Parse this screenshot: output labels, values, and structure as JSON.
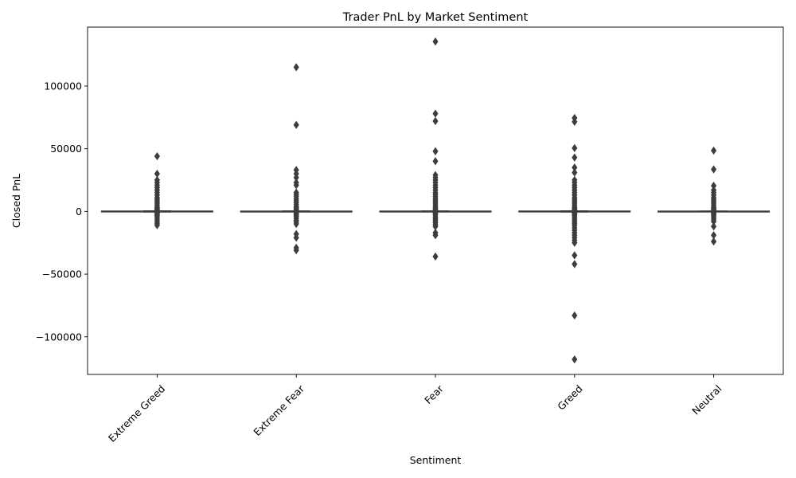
{
  "chart_data": {
    "type": "boxplot",
    "title": "Trader PnL by Market Sentiment",
    "xlabel": "Sentiment",
    "ylabel": "Closed PnL",
    "categories": [
      "Extreme Greed",
      "Extreme Fear",
      "Fear",
      "Greed",
      "Neutral"
    ],
    "yticks": [
      -100000,
      -50000,
      0,
      50000,
      100000
    ],
    "ytick_labels": [
      "−100000",
      "−50000",
      "0",
      "50000",
      "100000"
    ],
    "ylim": [
      -130000,
      147000
    ],
    "grid": false,
    "box_color": "#3d3d3d",
    "series": [
      {
        "name": "Extreme Greed",
        "median": 0,
        "q1": -50,
        "q3": 150,
        "whisker_low": -500,
        "whisker_high": 500,
        "outliers": [
          44000,
          30000,
          25000,
          23000,
          21000,
          19000,
          17000,
          15000,
          13000,
          11000,
          9500,
          8000,
          6500,
          5000,
          3500,
          2500,
          1500,
          1000,
          -1000,
          -1500,
          -2500,
          -3500,
          -5000,
          -6500,
          -8000,
          -9500,
          -11000
        ]
      },
      {
        "name": "Extreme Fear",
        "median": 0,
        "q1": -50,
        "q3": 100,
        "whisker_low": -400,
        "whisker_high": 400,
        "outliers": [
          115000,
          69000,
          33000,
          30000,
          27000,
          23000,
          21000,
          15000,
          13500,
          12000,
          10000,
          8500,
          7000,
          5500,
          4000,
          3000,
          2000,
          1000,
          -1000,
          -2000,
          -3000,
          -4000,
          -5500,
          -7000,
          -8500,
          -10000,
          -18000,
          -21000,
          -29000,
          -31000
        ]
      },
      {
        "name": "Fear",
        "median": 0,
        "q1": -50,
        "q3": 120,
        "whisker_low": -450,
        "whisker_high": 450,
        "outliers": [
          135500,
          78000,
          72000,
          48000,
          40000,
          29000,
          27000,
          25000,
          23000,
          21000,
          19000,
          17000,
          15000,
          13500,
          12000,
          10500,
          9000,
          7500,
          6000,
          4500,
          3000,
          2000,
          1000,
          -1000,
          -2000,
          -3000,
          -4500,
          -6000,
          -7500,
          -9000,
          -10500,
          -12000,
          -17000,
          -19000,
          -36000
        ]
      },
      {
        "name": "Greed",
        "median": 0,
        "q1": -60,
        "q3": 150,
        "whisker_low": -500,
        "whisker_high": 500,
        "outliers": [
          74500,
          71500,
          50500,
          43000,
          35000,
          31000,
          25000,
          23000,
          21000,
          19000,
          17000,
          15000,
          13000,
          11000,
          9500,
          8000,
          6500,
          5000,
          3500,
          2500,
          1500,
          1000,
          -1000,
          -1500,
          -2500,
          -3500,
          -5000,
          -6500,
          -8000,
          -9500,
          -11000,
          -13000,
          -15000,
          -17000,
          -19000,
          -21000,
          -23000,
          -25000,
          -35000,
          -42000,
          -83000,
          -118000
        ]
      },
      {
        "name": "Neutral",
        "median": 0,
        "q1": -40,
        "q3": 100,
        "whisker_low": -350,
        "whisker_high": 350,
        "outliers": [
          48500,
          33500,
          20500,
          17000,
          15000,
          13000,
          11000,
          9500,
          8000,
          6500,
          5000,
          3500,
          2500,
          1500,
          1000,
          -1000,
          -1500,
          -2500,
          -3500,
          -5000,
          -6500,
          -8000,
          -12000,
          -19000,
          -24000
        ]
      }
    ]
  }
}
